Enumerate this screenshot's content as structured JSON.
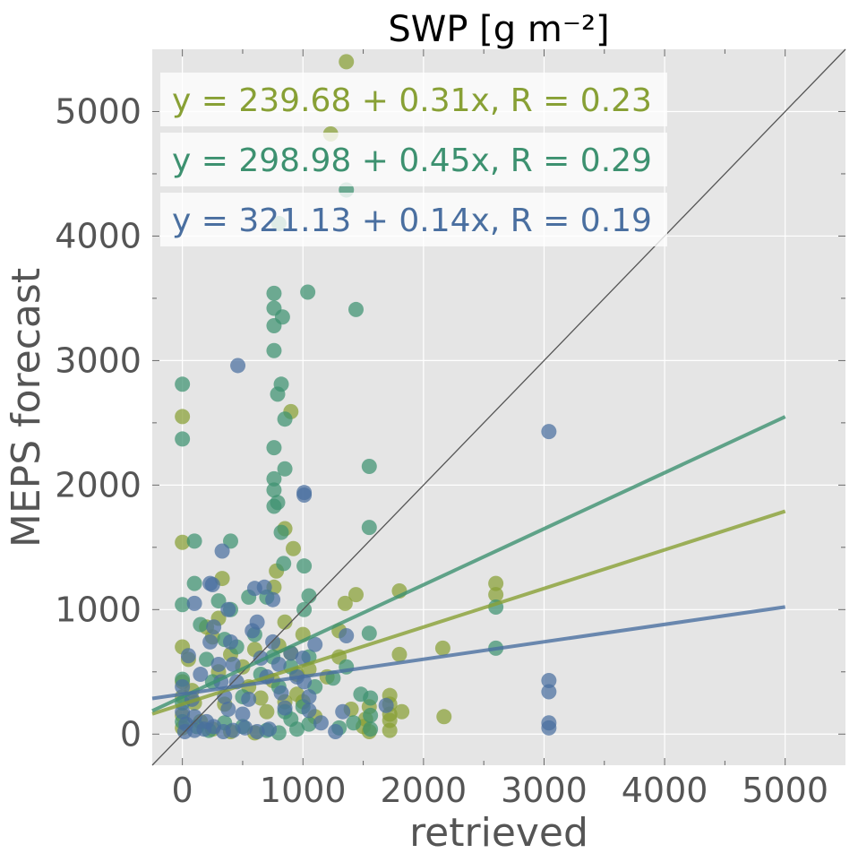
{
  "chart_data": {
    "type": "scatter",
    "title": "SWP [g m⁻²]",
    "xlabel": "retrieved",
    "ylabel": "MEPS forecast",
    "xlim": [
      -250,
      5500
    ],
    "ylim": [
      -250,
      5500
    ],
    "xticks": [
      0,
      1000,
      2000,
      3000,
      4000,
      5000
    ],
    "yticks": [
      0,
      1000,
      2000,
      3000,
      4000,
      5000
    ],
    "xtick_labels": [
      "0",
      "1000",
      "2000",
      "3000",
      "4000",
      "5000"
    ],
    "ytick_labels": [
      "0",
      "1000",
      "2000",
      "3000",
      "4000",
      "5000"
    ],
    "grid": true,
    "background": "#e5e5e5",
    "one_to_one_line": true,
    "series": [
      {
        "color": "#88a035",
        "equation": "y = 239.68 + 0.31x, R = 0.23",
        "fit": {
          "intercept": 239.68,
          "slope": 0.31
        },
        "points": [
          [
            1360,
            5400
          ],
          [
            1230,
            4820
          ],
          [
            900,
            2590
          ],
          [
            850,
            1650
          ],
          [
            920,
            1490
          ],
          [
            780,
            1310
          ],
          [
            330,
            1250
          ],
          [
            760,
            1180
          ],
          [
            1800,
            1150
          ],
          [
            1300,
            830
          ],
          [
            1350,
            1050
          ],
          [
            1440,
            1120
          ],
          [
            1800,
            640
          ],
          [
            2160,
            690
          ],
          [
            2600,
            1210
          ],
          [
            2600,
            1120
          ],
          [
            1720,
            310
          ],
          [
            1720,
            240
          ],
          [
            1720,
            160
          ],
          [
            1720,
            110
          ],
          [
            1720,
            30
          ],
          [
            1820,
            180
          ],
          [
            2170,
            140
          ],
          [
            0,
            2550
          ],
          [
            0,
            1540
          ],
          [
            0,
            700
          ],
          [
            0,
            420
          ],
          [
            0,
            300
          ],
          [
            0,
            150
          ],
          [
            0,
            50
          ],
          [
            50,
            600
          ],
          [
            80,
            350
          ],
          [
            100,
            250
          ],
          [
            150,
            100
          ],
          [
            200,
            860
          ],
          [
            250,
            780
          ],
          [
            300,
            500
          ],
          [
            350,
            240
          ],
          [
            400,
            640
          ],
          [
            500,
            540
          ],
          [
            550,
            380
          ],
          [
            600,
            680
          ],
          [
            650,
            290
          ],
          [
            700,
            180
          ],
          [
            750,
            430
          ],
          [
            800,
            710
          ],
          [
            850,
            900
          ],
          [
            900,
            650
          ],
          [
            950,
            320
          ],
          [
            1000,
            260
          ],
          [
            1050,
            520
          ],
          [
            1100,
            140
          ],
          [
            1200,
            460
          ],
          [
            1300,
            620
          ],
          [
            1400,
            200
          ],
          [
            1500,
            60
          ],
          [
            1520,
            120
          ],
          [
            1550,
            220
          ],
          [
            1550,
            20
          ],
          [
            250,
            40
          ],
          [
            400,
            20
          ],
          [
            600,
            10
          ],
          [
            300,
            930
          ],
          [
            850,
            260
          ],
          [
            950,
            480
          ],
          [
            1000,
            800
          ]
        ]
      },
      {
        "color": "#3d9170",
        "equation": "y = 298.98 + 0.45x, R = 0.29",
        "fit": {
          "intercept": 298.98,
          "slope": 0.45
        },
        "points": [
          [
            1360,
            4370
          ],
          [
            800,
            4100
          ],
          [
            760,
            3540
          ],
          [
            760,
            3420
          ],
          [
            830,
            3350
          ],
          [
            760,
            3280
          ],
          [
            1040,
            3550
          ],
          [
            1440,
            3410
          ],
          [
            760,
            3080
          ],
          [
            790,
            2730
          ],
          [
            820,
            2810
          ],
          [
            850,
            2530
          ],
          [
            760,
            2300
          ],
          [
            850,
            2130
          ],
          [
            760,
            2050
          ],
          [
            760,
            1960
          ],
          [
            760,
            1830
          ],
          [
            790,
            1860
          ],
          [
            820,
            1620
          ],
          [
            840,
            1370
          ],
          [
            1010,
            1350
          ],
          [
            1050,
            1110
          ],
          [
            1010,
            1000
          ],
          [
            1550,
            2150
          ],
          [
            1550,
            1660
          ],
          [
            1550,
            810
          ],
          [
            2600,
            1020
          ],
          [
            2600,
            690
          ],
          [
            1560,
            290
          ],
          [
            1560,
            150
          ],
          [
            1560,
            40
          ],
          [
            1480,
            320
          ],
          [
            0,
            2810
          ],
          [
            0,
            2370
          ],
          [
            0,
            1040
          ],
          [
            0,
            440
          ],
          [
            0,
            250
          ],
          [
            0,
            100
          ],
          [
            100,
            1550
          ],
          [
            100,
            1210
          ],
          [
            150,
            880
          ],
          [
            200,
            600
          ],
          [
            250,
            420
          ],
          [
            300,
            1070
          ],
          [
            350,
            760
          ],
          [
            400,
            1550
          ],
          [
            400,
            1000
          ],
          [
            450,
            700
          ],
          [
            500,
            300
          ],
          [
            550,
            1100
          ],
          [
            600,
            800
          ],
          [
            650,
            480
          ],
          [
            700,
            1100
          ],
          [
            750,
            620
          ],
          [
            800,
            380
          ],
          [
            850,
            180
          ],
          [
            900,
            540
          ],
          [
            950,
            40
          ],
          [
            1000,
            220
          ],
          [
            1050,
            620
          ],
          [
            1100,
            380
          ],
          [
            1250,
            450
          ],
          [
            1300,
            50
          ],
          [
            1360,
            540
          ],
          [
            1420,
            90
          ],
          [
            120,
            60
          ],
          [
            220,
            30
          ],
          [
            350,
            90
          ],
          [
            500,
            60
          ],
          [
            700,
            30
          ],
          [
            800,
            10
          ],
          [
            900,
            120
          ],
          [
            1050,
            80
          ]
        ]
      },
      {
        "color": "#4a6fa0",
        "equation": "y = 321.13 + 0.14x, R = 0.19",
        "fit": {
          "intercept": 321.13,
          "slope": 0.14
        },
        "points": [
          [
            460,
            2960
          ],
          [
            3040,
            2430
          ],
          [
            1010,
            1940
          ],
          [
            1010,
            1920
          ],
          [
            330,
            1470
          ],
          [
            380,
            1000
          ],
          [
            230,
            1210
          ],
          [
            250,
            1200
          ],
          [
            600,
            1170
          ],
          [
            680,
            1180
          ],
          [
            750,
            1080
          ],
          [
            100,
            1050
          ],
          [
            3040,
            430
          ],
          [
            3040,
            340
          ],
          [
            3040,
            90
          ],
          [
            3040,
            50
          ],
          [
            1360,
            790
          ],
          [
            1330,
            180
          ],
          [
            1270,
            20
          ],
          [
            1690,
            230
          ],
          [
            0,
            380
          ],
          [
            0,
            180
          ],
          [
            30,
            80
          ],
          [
            50,
            630
          ],
          [
            80,
            280
          ],
          [
            100,
            140
          ],
          [
            150,
            480
          ],
          [
            200,
            100
          ],
          [
            230,
            740
          ],
          [
            260,
            860
          ],
          [
            300,
            560
          ],
          [
            320,
            420
          ],
          [
            350,
            300
          ],
          [
            380,
            200
          ],
          [
            400,
            740
          ],
          [
            420,
            560
          ],
          [
            450,
            420
          ],
          [
            500,
            160
          ],
          [
            550,
            280
          ],
          [
            580,
            830
          ],
          [
            620,
            900
          ],
          [
            650,
            610
          ],
          [
            700,
            460
          ],
          [
            750,
            740
          ],
          [
            800,
            560
          ],
          [
            820,
            330
          ],
          [
            850,
            210
          ],
          [
            900,
            650
          ],
          [
            950,
            460
          ],
          [
            1000,
            610
          ],
          [
            1010,
            420
          ],
          [
            1050,
            300
          ],
          [
            1100,
            720
          ],
          [
            1050,
            190
          ],
          [
            1150,
            90
          ],
          [
            20,
            20
          ],
          [
            100,
            30
          ],
          [
            180,
            40
          ],
          [
            260,
            60
          ],
          [
            340,
            20
          ],
          [
            420,
            30
          ],
          [
            520,
            50
          ],
          [
            620,
            20
          ],
          [
            720,
            40
          ]
        ]
      }
    ]
  }
}
